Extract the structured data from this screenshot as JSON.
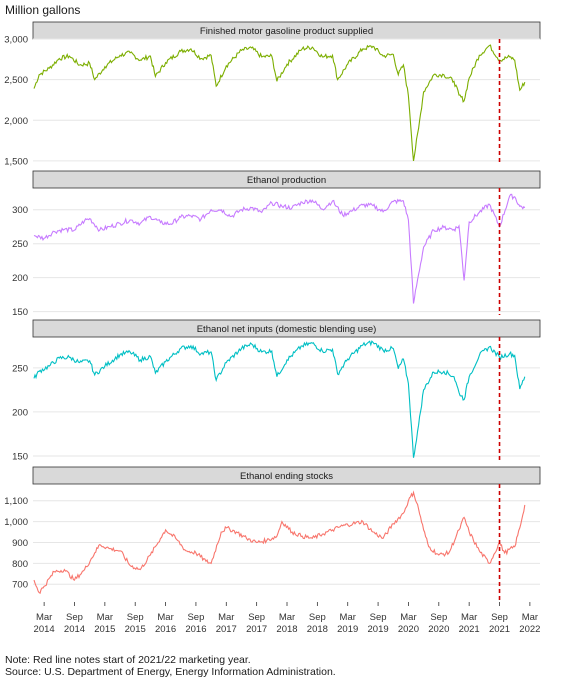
{
  "figure": {
    "unit_label": "Million gallons",
    "note": "Note: Red line notes start of 2021/22 marketing year.",
    "source": "Source: U.S. Department of Energy, Energy Information Administration."
  },
  "chart_data": {
    "type": "line",
    "grid": true,
    "colors": {
      "panel_header_bg": "#d9d9d9",
      "gridline": "#e6e6e6",
      "marker_line": "#cc0000"
    },
    "x_axis": {
      "start": "2014-03",
      "end": "2022-03",
      "tick_labels": [
        {
          "date": "2014-03",
          "month": "Mar",
          "year": "2014"
        },
        {
          "date": "2014-09",
          "month": "Sep",
          "year": "2014"
        },
        {
          "date": "2015-03",
          "month": "Mar",
          "year": "2015"
        },
        {
          "date": "2015-09",
          "month": "Sep",
          "year": "2015"
        },
        {
          "date": "2016-03",
          "month": "Mar",
          "year": "2016"
        },
        {
          "date": "2016-09",
          "month": "Sep",
          "year": "2016"
        },
        {
          "date": "2017-03",
          "month": "Mar",
          "year": "2017"
        },
        {
          "date": "2017-09",
          "month": "Sep",
          "year": "2017"
        },
        {
          "date": "2018-03",
          "month": "Mar",
          "year": "2018"
        },
        {
          "date": "2018-09",
          "month": "Sep",
          "year": "2018"
        },
        {
          "date": "2019-03",
          "month": "Mar",
          "year": "2019"
        },
        {
          "date": "2019-09",
          "month": "Sep",
          "year": "2019"
        },
        {
          "date": "2020-03",
          "month": "Mar",
          "year": "2020"
        },
        {
          "date": "2020-09",
          "month": "Sep",
          "year": "2020"
        },
        {
          "date": "2021-03",
          "month": "Mar",
          "year": "2021"
        },
        {
          "date": "2021-09",
          "month": "Sep",
          "year": "2021"
        },
        {
          "date": "2022-03",
          "month": "Mar",
          "year": "2022"
        }
      ]
    },
    "marker_date": "2021-09",
    "panels": [
      {
        "title": "Finished motor gasoline product supplied",
        "color": "#7cae00",
        "ylim": [
          1450,
          3000
        ],
        "yticks": [
          1500,
          2000,
          2500,
          3000
        ],
        "ytick_labels": [
          "1,500",
          "2,000",
          "2,500",
          "3,000"
        ],
        "points": [
          [
            "2014-01",
            2390
          ],
          [
            "2014-02",
            2560
          ],
          [
            "2014-04",
            2640
          ],
          [
            "2014-06",
            2760
          ],
          [
            "2014-08",
            2790
          ],
          [
            "2014-10",
            2680
          ],
          [
            "2014-12",
            2700
          ],
          [
            "2015-01",
            2500
          ],
          [
            "2015-03",
            2660
          ],
          [
            "2015-06",
            2800
          ],
          [
            "2015-08",
            2830
          ],
          [
            "2015-10",
            2740
          ],
          [
            "2015-12",
            2790
          ],
          [
            "2016-01",
            2540
          ],
          [
            "2016-03",
            2710
          ],
          [
            "2016-06",
            2850
          ],
          [
            "2016-08",
            2880
          ],
          [
            "2016-10",
            2760
          ],
          [
            "2016-12",
            2800
          ],
          [
            "2017-01",
            2420
          ],
          [
            "2017-03",
            2670
          ],
          [
            "2017-06",
            2860
          ],
          [
            "2017-08",
            2890
          ],
          [
            "2017-10",
            2780
          ],
          [
            "2017-12",
            2790
          ],
          [
            "2018-01",
            2480
          ],
          [
            "2018-03",
            2690
          ],
          [
            "2018-06",
            2880
          ],
          [
            "2018-08",
            2900
          ],
          [
            "2018-10",
            2780
          ],
          [
            "2018-12",
            2800
          ],
          [
            "2019-01",
            2500
          ],
          [
            "2019-03",
            2690
          ],
          [
            "2019-06",
            2880
          ],
          [
            "2019-08",
            2910
          ],
          [
            "2019-10",
            2790
          ],
          [
            "2019-12",
            2810
          ],
          [
            "2020-01",
            2560
          ],
          [
            "2020-02",
            2680
          ],
          [
            "2020-03",
            2300
          ],
          [
            "2020-04",
            1500
          ],
          [
            "2020-05",
            1900
          ],
          [
            "2020-06",
            2350
          ],
          [
            "2020-08",
            2560
          ],
          [
            "2020-10",
            2560
          ],
          [
            "2020-12",
            2480
          ],
          [
            "2021-01",
            2310
          ],
          [
            "2021-02",
            2240
          ],
          [
            "2021-03",
            2520
          ],
          [
            "2021-05",
            2800
          ],
          [
            "2021-07",
            2920
          ],
          [
            "2021-09",
            2740
          ],
          [
            "2021-11",
            2780
          ],
          [
            "2021-12",
            2740
          ],
          [
            "2022-01",
            2370
          ],
          [
            "2022-02",
            2470
          ]
        ]
      },
      {
        "title": "Ethanol production",
        "color": "#c77cff",
        "ylim": [
          145,
          332
        ],
        "yticks": [
          150,
          200,
          250,
          300
        ],
        "ytick_labels": [
          "150",
          "200",
          "250",
          "300"
        ],
        "points": [
          [
            "2014-01",
            262
          ],
          [
            "2014-03",
            258
          ],
          [
            "2014-05",
            268
          ],
          [
            "2014-07",
            271
          ],
          [
            "2014-09",
            270
          ],
          [
            "2014-11",
            284
          ],
          [
            "2014-12",
            287
          ],
          [
            "2015-02",
            270
          ],
          [
            "2015-04",
            275
          ],
          [
            "2015-06",
            280
          ],
          [
            "2015-08",
            285
          ],
          [
            "2015-10",
            280
          ],
          [
            "2015-12",
            290
          ],
          [
            "2016-02",
            281
          ],
          [
            "2016-04",
            279
          ],
          [
            "2016-06",
            289
          ],
          [
            "2016-08",
            291
          ],
          [
            "2016-10",
            286
          ],
          [
            "2016-12",
            300
          ],
          [
            "2017-02",
            300
          ],
          [
            "2017-04",
            290
          ],
          [
            "2017-06",
            300
          ],
          [
            "2017-08",
            303
          ],
          [
            "2017-10",
            296
          ],
          [
            "2017-12",
            310
          ],
          [
            "2018-02",
            305
          ],
          [
            "2018-04",
            303
          ],
          [
            "2018-06",
            311
          ],
          [
            "2018-08",
            314
          ],
          [
            "2018-10",
            301
          ],
          [
            "2018-12",
            313
          ],
          [
            "2019-02",
            292
          ],
          [
            "2019-04",
            299
          ],
          [
            "2019-06",
            307
          ],
          [
            "2019-08",
            306
          ],
          [
            "2019-10",
            297
          ],
          [
            "2019-12",
            312
          ],
          [
            "2020-02",
            313
          ],
          [
            "2020-03",
            285
          ],
          [
            "2020-04",
            162
          ],
          [
            "2020-05",
            205
          ],
          [
            "2020-06",
            245
          ],
          [
            "2020-08",
            270
          ],
          [
            "2020-10",
            274
          ],
          [
            "2020-12",
            271
          ],
          [
            "2021-01",
            276
          ],
          [
            "2021-02",
            196
          ],
          [
            "2021-03",
            282
          ],
          [
            "2021-05",
            296
          ],
          [
            "2021-07",
            308
          ],
          [
            "2021-09",
            275
          ],
          [
            "2021-11",
            320
          ],
          [
            "2021-12",
            319
          ],
          [
            "2022-01",
            305
          ],
          [
            "2022-02",
            303
          ]
        ]
      },
      {
        "title": "Ethanol net inputs (domestic blending use)",
        "color": "#00bfc4",
        "ylim": [
          142,
          285
        ],
        "yticks": [
          150,
          200,
          250
        ],
        "ytick_labels": [
          "150",
          "200",
          "250"
        ],
        "points": [
          [
            "2014-01",
            238
          ],
          [
            "2014-02",
            246
          ],
          [
            "2014-04",
            252
          ],
          [
            "2014-06",
            261
          ],
          [
            "2014-08",
            262
          ],
          [
            "2014-10",
            256
          ],
          [
            "2014-12",
            258
          ],
          [
            "2015-01",
            242
          ],
          [
            "2015-03",
            252
          ],
          [
            "2015-06",
            265
          ],
          [
            "2015-08",
            268
          ],
          [
            "2015-10",
            259
          ],
          [
            "2015-12",
            263
          ],
          [
            "2016-01",
            244
          ],
          [
            "2016-03",
            257
          ],
          [
            "2016-06",
            272
          ],
          [
            "2016-08",
            275
          ],
          [
            "2016-10",
            266
          ],
          [
            "2016-12",
            268
          ],
          [
            "2017-01",
            236
          ],
          [
            "2017-03",
            256
          ],
          [
            "2017-06",
            272
          ],
          [
            "2017-08",
            277
          ],
          [
            "2017-10",
            268
          ],
          [
            "2017-12",
            269
          ],
          [
            "2018-01",
            240
          ],
          [
            "2018-03",
            259
          ],
          [
            "2018-06",
            275
          ],
          [
            "2018-08",
            278
          ],
          [
            "2018-10",
            269
          ],
          [
            "2018-12",
            271
          ],
          [
            "2019-01",
            243
          ],
          [
            "2019-03",
            260
          ],
          [
            "2019-06",
            276
          ],
          [
            "2019-08",
            279
          ],
          [
            "2019-10",
            270
          ],
          [
            "2019-12",
            272
          ],
          [
            "2020-01",
            249
          ],
          [
            "2020-02",
            260
          ],
          [
            "2020-03",
            232
          ],
          [
            "2020-04",
            148
          ],
          [
            "2020-05",
            185
          ],
          [
            "2020-06",
            225
          ],
          [
            "2020-08",
            245
          ],
          [
            "2020-10",
            246
          ],
          [
            "2020-12",
            240
          ],
          [
            "2021-01",
            222
          ],
          [
            "2021-02",
            214
          ],
          [
            "2021-03",
            240
          ],
          [
            "2021-05",
            264
          ],
          [
            "2021-07",
            274
          ],
          [
            "2021-09",
            262
          ],
          [
            "2021-11",
            266
          ],
          [
            "2021-12",
            264
          ],
          [
            "2022-01",
            226
          ],
          [
            "2022-02",
            240
          ]
        ]
      },
      {
        "title": "Ethanol ending stocks",
        "color": "#f8766d",
        "ylim": [
          615,
          1180
        ],
        "yticks": [
          700,
          800,
          900,
          1000,
          1100
        ],
        "ytick_labels": [
          "700",
          "800",
          "900",
          "1,000",
          "1,100"
        ],
        "points": [
          [
            "2014-01",
            720
          ],
          [
            "2014-02",
            660
          ],
          [
            "2014-03",
            690
          ],
          [
            "2014-05",
            760
          ],
          [
            "2014-07",
            770
          ],
          [
            "2014-09",
            720
          ],
          [
            "2014-11",
            770
          ],
          [
            "2015-01",
            850
          ],
          [
            "2015-02",
            890
          ],
          [
            "2015-04",
            870
          ],
          [
            "2015-06",
            860
          ],
          [
            "2015-08",
            790
          ],
          [
            "2015-10",
            770
          ],
          [
            "2015-12",
            840
          ],
          [
            "2016-02",
            920
          ],
          [
            "2016-03",
            960
          ],
          [
            "2016-05",
            920
          ],
          [
            "2016-07",
            860
          ],
          [
            "2016-09",
            850
          ],
          [
            "2016-11",
            810
          ],
          [
            "2016-12",
            800
          ],
          [
            "2017-02",
            950
          ],
          [
            "2017-03",
            970
          ],
          [
            "2017-05",
            950
          ],
          [
            "2017-07",
            920
          ],
          [
            "2017-09",
            900
          ],
          [
            "2017-11",
            910
          ],
          [
            "2018-01",
            930
          ],
          [
            "2018-02",
            1000
          ],
          [
            "2018-04",
            950
          ],
          [
            "2018-06",
            930
          ],
          [
            "2018-08",
            920
          ],
          [
            "2018-10",
            940
          ],
          [
            "2018-12",
            960
          ],
          [
            "2019-02",
            980
          ],
          [
            "2019-04",
            990
          ],
          [
            "2019-06",
            1000
          ],
          [
            "2019-08",
            950
          ],
          [
            "2019-10",
            920
          ],
          [
            "2019-12",
            990
          ],
          [
            "2020-02",
            1040
          ],
          [
            "2020-03",
            1100
          ],
          [
            "2020-04",
            1140
          ],
          [
            "2020-05",
            1060
          ],
          [
            "2020-06",
            960
          ],
          [
            "2020-07",
            880
          ],
          [
            "2020-09",
            840
          ],
          [
            "2020-11",
            850
          ],
          [
            "2021-01",
            960
          ],
          [
            "2021-02",
            1020
          ],
          [
            "2021-03",
            950
          ],
          [
            "2021-05",
            860
          ],
          [
            "2021-07",
            800
          ],
          [
            "2021-09",
            900
          ],
          [
            "2021-10",
            850
          ],
          [
            "2021-12",
            880
          ],
          [
            "2022-01",
            970
          ],
          [
            "2022-02",
            1080
          ]
        ]
      }
    ]
  }
}
